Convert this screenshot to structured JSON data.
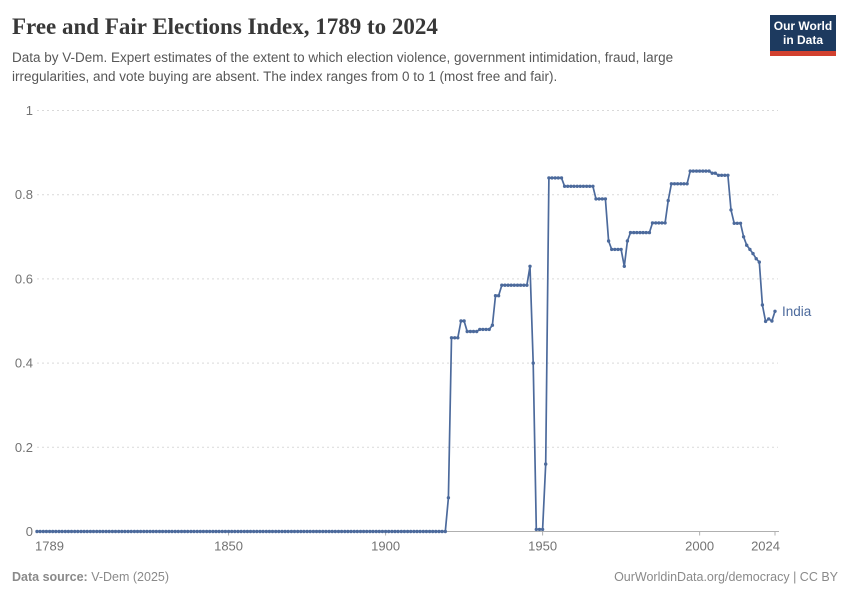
{
  "header": {
    "title": "Free and Fair Elections Index, 1789 to 2024",
    "subtitle": "Data by V-Dem. Expert estimates of the extent to which election violence, government intimidation, fraud, large irregularities, and vote buying are absent. The index ranges from 0 to 1 (most free and fair)."
  },
  "logo": {
    "line1": "Our World",
    "line2": "in Data"
  },
  "footer": {
    "source_label": "Data source:",
    "source_value": " V-Dem (2025)",
    "link": "OurWorldinData.org/democracy | CC BY"
  },
  "colors": {
    "line": "#4c6a9c",
    "entity_label": "#4c6a9c",
    "grid": "#d9d9d9",
    "axis": "#b0b0b0",
    "tick_label": "#737373",
    "title": "#383838",
    "subtitle": "#575757",
    "footer": "#8a8a8a",
    "logo_bg": "#1d3a5f",
    "logo_red": "#d2402f"
  },
  "chart_data": {
    "type": "line",
    "title": "Free and Fair Elections Index, 1789 to 2024",
    "xlabel": "",
    "ylabel": "",
    "x_range": [
      1789,
      2024
    ],
    "ylim": [
      0,
      1
    ],
    "y_ticks": [
      0,
      0.2,
      0.4,
      0.6,
      0.8,
      1
    ],
    "x_ticks": [
      1789,
      1850,
      1900,
      1950,
      2000,
      2024
    ],
    "grid": "dashed-horizontal",
    "legend_position": "end-of-line-label",
    "series": [
      {
        "name": "India",
        "note": "runs are [startYear, endYear, value]; one data point per year",
        "runs": [
          [
            1789,
            1919,
            0
          ],
          [
            1920,
            1920,
            0.08
          ],
          [
            1921,
            1923,
            0.46
          ],
          [
            1924,
            1925,
            0.5
          ],
          [
            1926,
            1929,
            0.475
          ],
          [
            1930,
            1933,
            0.48
          ],
          [
            1934,
            1934,
            0.49
          ],
          [
            1935,
            1936,
            0.56
          ],
          [
            1937,
            1945,
            0.585
          ],
          [
            1946,
            1946,
            0.63
          ],
          [
            1947,
            1947,
            0.4
          ],
          [
            1948,
            1950,
            0.005
          ],
          [
            1951,
            1951,
            0.16
          ],
          [
            1952,
            1956,
            0.84
          ],
          [
            1957,
            1966,
            0.82
          ],
          [
            1967,
            1970,
            0.79
          ],
          [
            1971,
            1971,
            0.69
          ],
          [
            1972,
            1975,
            0.67
          ],
          [
            1976,
            1976,
            0.63
          ],
          [
            1977,
            1977,
            0.69
          ],
          [
            1978,
            1984,
            0.71
          ],
          [
            1985,
            1989,
            0.733
          ],
          [
            1990,
            1990,
            0.786
          ],
          [
            1991,
            1996,
            0.826
          ],
          [
            1997,
            2003,
            0.856
          ],
          [
            2004,
            2005,
            0.851
          ],
          [
            2006,
            2009,
            0.846
          ],
          [
            2010,
            2010,
            0.764
          ],
          [
            2011,
            2013,
            0.732
          ],
          [
            2014,
            2014,
            0.7
          ],
          [
            2015,
            2015,
            0.68
          ],
          [
            2016,
            2016,
            0.67
          ],
          [
            2017,
            2017,
            0.66
          ],
          [
            2018,
            2018,
            0.648
          ],
          [
            2019,
            2019,
            0.64
          ],
          [
            2020,
            2020,
            0.538
          ],
          [
            2021,
            2021,
            0.499
          ],
          [
            2022,
            2022,
            0.505
          ],
          [
            2023,
            2023,
            0.5
          ],
          [
            2024,
            2024,
            0.523
          ]
        ]
      }
    ]
  }
}
